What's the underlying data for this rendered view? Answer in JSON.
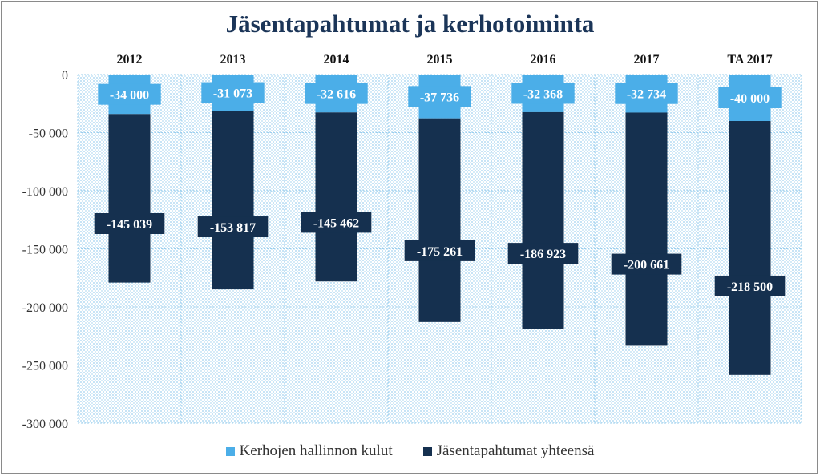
{
  "chart_data": {
    "type": "bar",
    "stacked": true,
    "title": "Jäsentapahtumat ja kerhotoiminta",
    "categories": [
      "2012",
      "2013",
      "2014",
      "2015",
      "2016",
      "2017",
      "TA 2017"
    ],
    "series": [
      {
        "name": "Kerhojen hallinnon kulut",
        "color": "#4baee8",
        "values": [
          -34000,
          -31073,
          -32616,
          -37736,
          -32368,
          -32734,
          -40000
        ],
        "labels": [
          "-34 000",
          "-31 073",
          "-32 616",
          "-37 736",
          "-32 368",
          "-32 734",
          "-40 000"
        ]
      },
      {
        "name": "Jäsentapahtumat yhteensä",
        "color": "#15304f",
        "values": [
          -145039,
          -153817,
          -145462,
          -175261,
          -186923,
          -200661,
          -218500
        ],
        "labels": [
          "-145 039",
          "-153 817",
          "-145 462",
          "-175 261",
          "-186 923",
          "-200 661",
          "-218 500"
        ]
      }
    ],
    "ylim": [
      -300000,
      0
    ],
    "yticks": [
      0,
      -50000,
      -100000,
      -150000,
      -200000,
      -250000,
      -300000
    ],
    "ytick_labels": [
      "0",
      "-50 000",
      "-100 000",
      "-150 000",
      "-200 000",
      "-250 000",
      "-300 000"
    ],
    "xaxis_position": "top",
    "grid": true,
    "legend_position": "bottom"
  }
}
